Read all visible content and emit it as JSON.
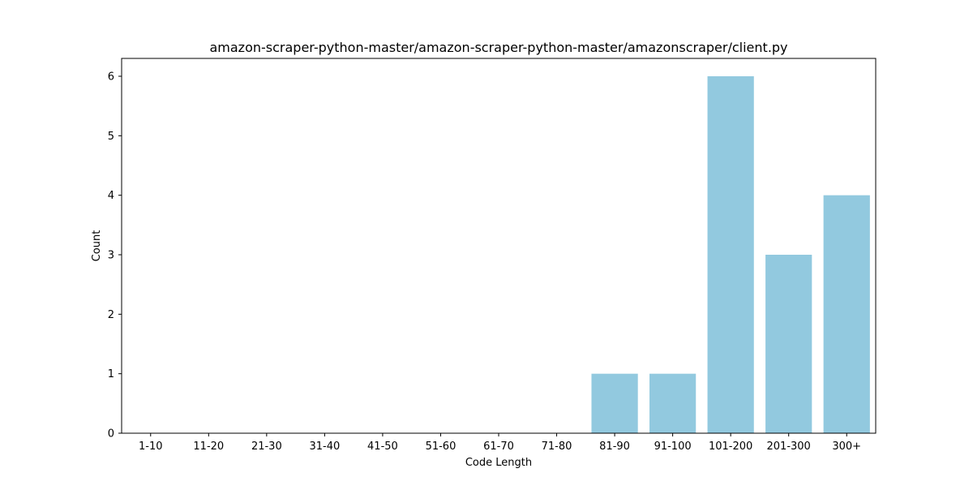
{
  "chart_data": {
    "type": "bar",
    "title": "amazon-scraper-python-master/amazon-scraper-python-master/amazonscraper/client.py",
    "xlabel": "Code Length",
    "ylabel": "Count",
    "categories": [
      "1-10",
      "11-20",
      "21-30",
      "31-40",
      "41-50",
      "51-60",
      "61-70",
      "71-80",
      "81-90",
      "91-100",
      "101-200",
      "201-300",
      "300+"
    ],
    "values": [
      0,
      0,
      0,
      0,
      0,
      0,
      0,
      0,
      1,
      1,
      6,
      3,
      4
    ],
    "ylim": [
      0,
      6.3
    ],
    "yticks": [
      0,
      1,
      2,
      3,
      4,
      5,
      6
    ],
    "grid": false,
    "bar_color": "#92c9df"
  }
}
